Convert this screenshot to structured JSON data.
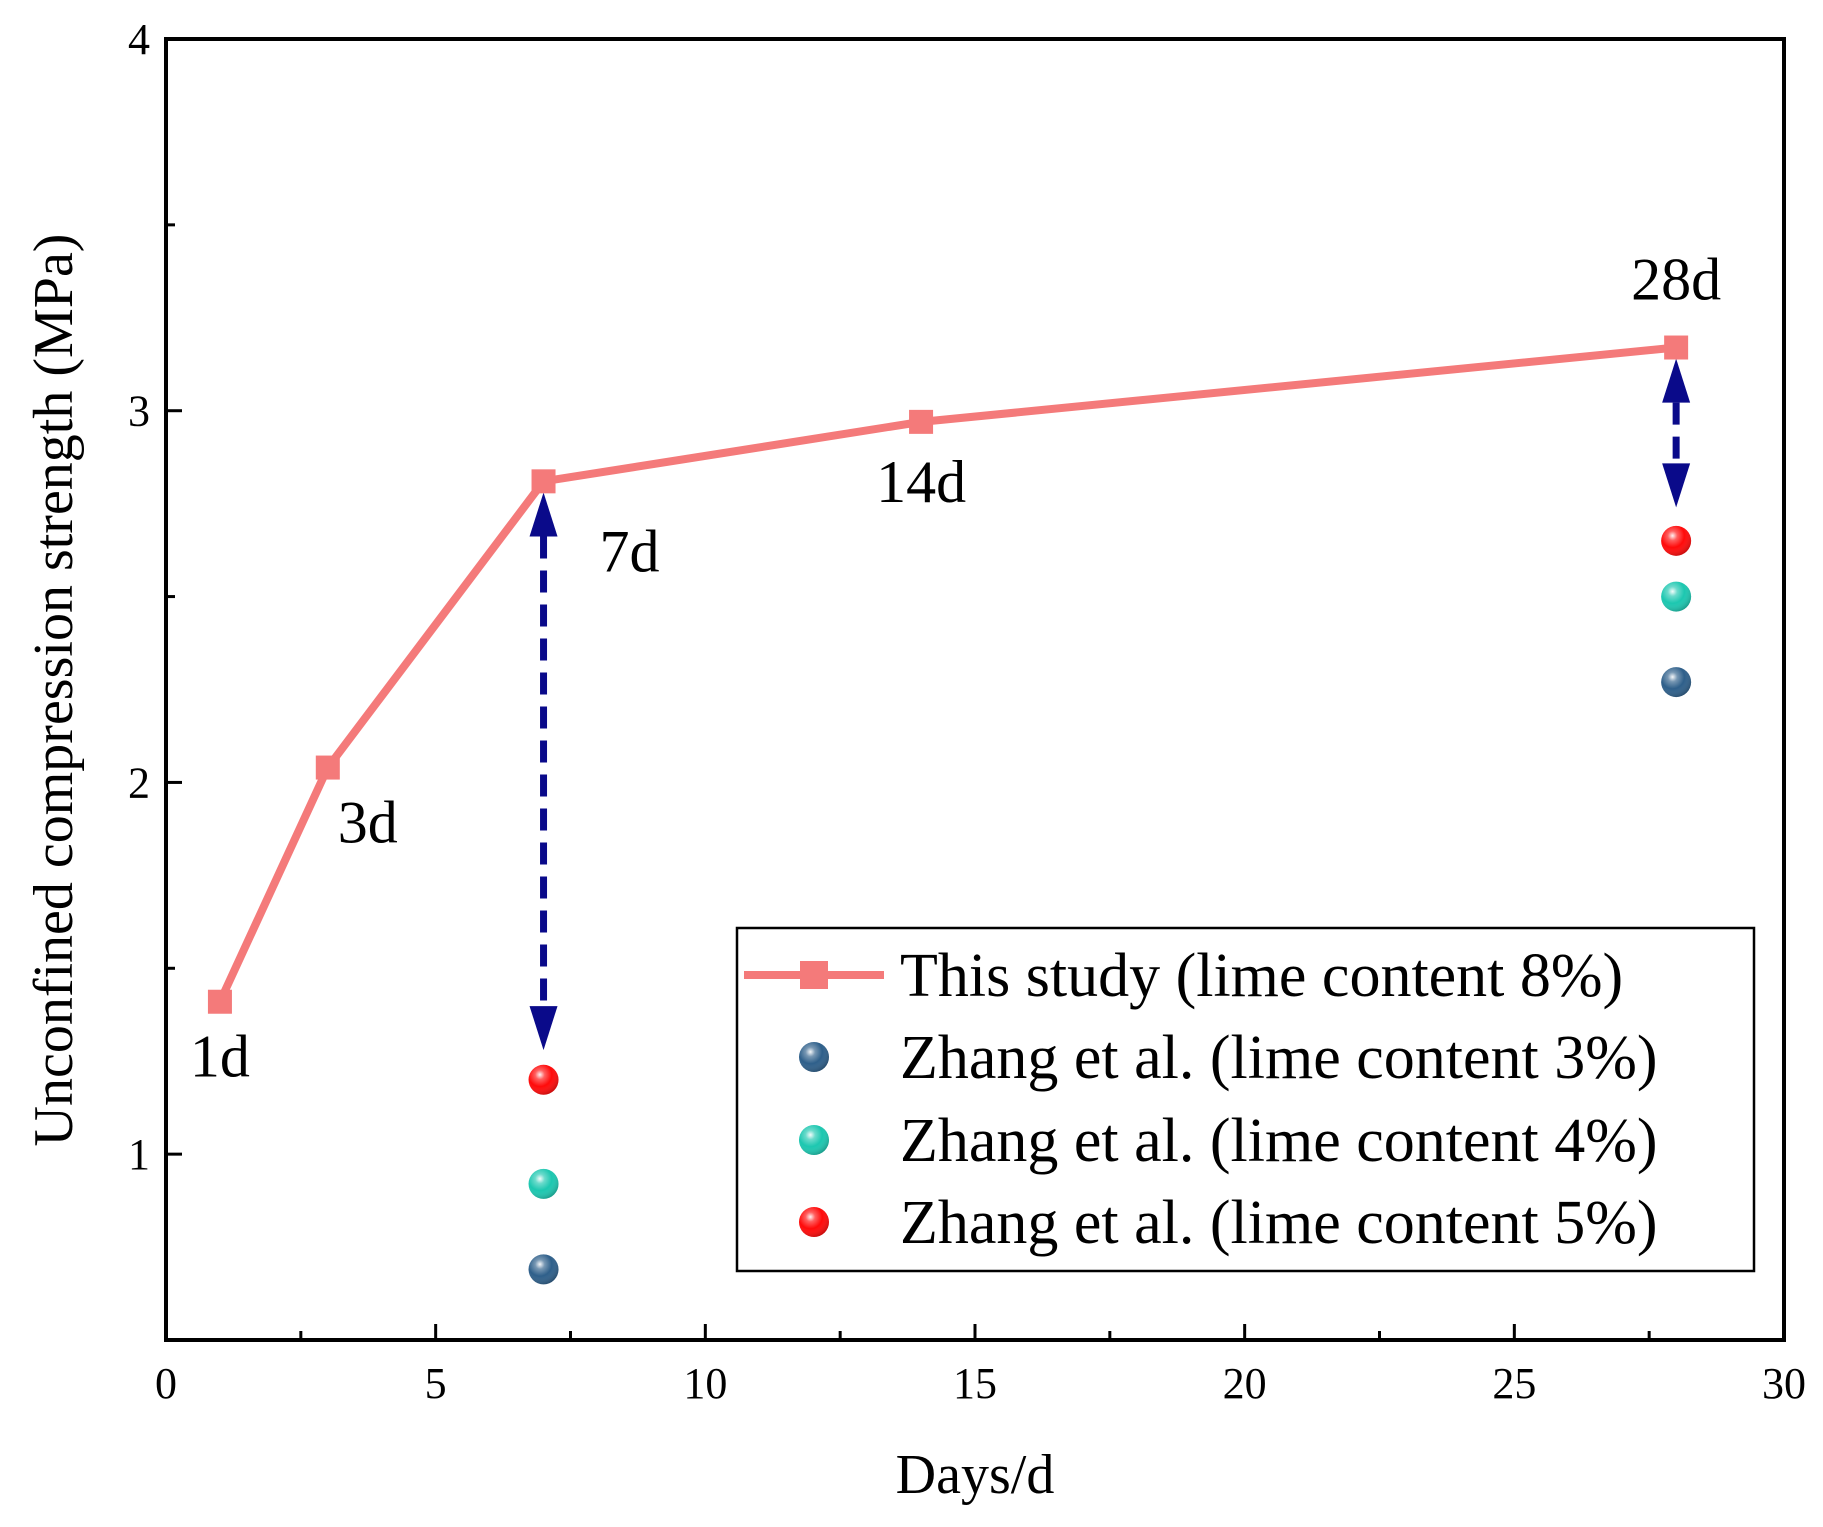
{
  "chart_data": {
    "type": "line",
    "xlabel": "Days/d",
    "ylabel": "Unconfined compression strength (MPa)",
    "xlim": [
      0,
      30
    ],
    "ylim": [
      0.5,
      4
    ],
    "x_ticks": [
      0,
      5,
      10,
      15,
      20,
      25,
      30
    ],
    "y_ticks": [
      1,
      2,
      3,
      4
    ],
    "grid": false,
    "legend_position": "bottom-right",
    "series": [
      {
        "name": "This study (lime content 8%)",
        "kind": "line-square",
        "color": "#f47a7a",
        "x": [
          1,
          3,
          7,
          14,
          28
        ],
        "values": [
          1.41,
          2.04,
          2.81,
          2.97,
          3.17
        ],
        "point_labels": [
          "1d",
          "3d",
          "7d",
          "14d",
          "28d"
        ]
      },
      {
        "name": "Zhang et al. (lime content 3%)",
        "kind": "scatter-sphere",
        "color": "#2e5f8a",
        "x": [
          7,
          28
        ],
        "values": [
          0.69,
          2.27
        ]
      },
      {
        "name": "Zhang et al. (lime content 4%)",
        "kind": "scatter-sphere",
        "color": "#1cc7b0",
        "x": [
          7,
          28
        ],
        "values": [
          0.92,
          2.5
        ]
      },
      {
        "name": "Zhang et al. (lime content 5%)",
        "kind": "scatter-sphere",
        "color": "#ff0a0a",
        "x": [
          7,
          28
        ],
        "values": [
          1.2,
          2.65
        ]
      }
    ],
    "arrows": [
      {
        "x": 7,
        "from": 2.78,
        "to": 1.28,
        "style": "dashed-double",
        "color": "#0a0a8a"
      },
      {
        "x": 28,
        "from": 3.14,
        "to": 2.74,
        "style": "dashed-double",
        "color": "#0a0a8a"
      }
    ]
  }
}
